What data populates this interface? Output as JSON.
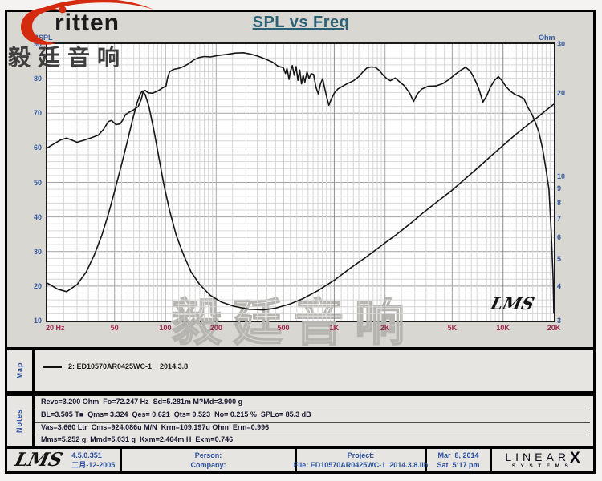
{
  "header": {
    "title": "SPL vs Freq",
    "logo_text": "ritten",
    "watermark": "毅廷音响"
  },
  "chart": {
    "signature": "LMS"
  },
  "chart_data": {
    "type": "line",
    "title": "SPL vs Freq",
    "grid": true,
    "x_axis": {
      "label": "Hz",
      "scale": "log",
      "min": 20,
      "max": 20000,
      "tick_values": [
        20,
        50,
        100,
        200,
        500,
        1000,
        2000,
        5000,
        10000,
        20000
      ],
      "tick_labels": [
        "20 Hz",
        "50",
        "100",
        "200",
        "500",
        "1K",
        "2K",
        "5K",
        "10K",
        "20K"
      ]
    },
    "y_axis_left": {
      "label": "dBSPL",
      "scale": "linear",
      "min": 10,
      "max": 90,
      "ticks": [
        90,
        80,
        70,
        60,
        50,
        40,
        30,
        20,
        10
      ]
    },
    "y_axis_right": {
      "label": "Ohm",
      "scale": "log",
      "min": 3,
      "max": 30,
      "ticks": [
        30,
        20,
        10,
        9,
        8,
        7,
        6,
        5,
        4,
        3
      ]
    },
    "series": [
      {
        "name": "SPL — 2: ED10570AR0425WC-1 2014.3.8",
        "axis": "left",
        "unit": "dBSPL",
        "points": [
          [
            20,
            60
          ],
          [
            22,
            61.2
          ],
          [
            24,
            62.3
          ],
          [
            26,
            62.8
          ],
          [
            28,
            62.2
          ],
          [
            30,
            61.6
          ],
          [
            33,
            62.2
          ],
          [
            36,
            62.8
          ],
          [
            40,
            63.6
          ],
          [
            43,
            65.3
          ],
          [
            46,
            67.6
          ],
          [
            48,
            67.9
          ],
          [
            51,
            66.7
          ],
          [
            54,
            66.9
          ],
          [
            56,
            68.1
          ],
          [
            58,
            69.6
          ],
          [
            61,
            70.3
          ],
          [
            65,
            71
          ],
          [
            69,
            71.9
          ],
          [
            72,
            74
          ],
          [
            74,
            76.4
          ],
          [
            76,
            76.6
          ],
          [
            79,
            75.9
          ],
          [
            84,
            75.8
          ],
          [
            90,
            76.4
          ],
          [
            96,
            77.3
          ],
          [
            101,
            77.9
          ],
          [
            103,
            80.2
          ],
          [
            106,
            82
          ],
          [
            112,
            82.7
          ],
          [
            120,
            83
          ],
          [
            128,
            83.5
          ],
          [
            137,
            84.3
          ],
          [
            147,
            85.4
          ],
          [
            158,
            86.1
          ],
          [
            170,
            86.4
          ],
          [
            185,
            86.3
          ],
          [
            205,
            86.7
          ],
          [
            230,
            87
          ],
          [
            260,
            87.4
          ],
          [
            290,
            87.5
          ],
          [
            320,
            87.1
          ],
          [
            355,
            86.5
          ],
          [
            395,
            85.6
          ],
          [
            430,
            84.8
          ],
          [
            465,
            83.6
          ],
          [
            500,
            83.2
          ],
          [
            515,
            81.5
          ],
          [
            525,
            83
          ],
          [
            540,
            79.8
          ],
          [
            550,
            82
          ],
          [
            565,
            83.8
          ],
          [
            580,
            81
          ],
          [
            595,
            83.5
          ],
          [
            610,
            79.5
          ],
          [
            625,
            82.5
          ],
          [
            640,
            78.5
          ],
          [
            655,
            81
          ],
          [
            670,
            79
          ],
          [
            690,
            82
          ],
          [
            710,
            80
          ],
          [
            730,
            81.5
          ],
          [
            755,
            81.2
          ],
          [
            780,
            77.5
          ],
          [
            805,
            75.6
          ],
          [
            830,
            78.5
          ],
          [
            855,
            80
          ],
          [
            880,
            77
          ],
          [
            905,
            74.5
          ],
          [
            930,
            72.3
          ],
          [
            960,
            74
          ],
          [
            1000,
            75.8
          ],
          [
            1050,
            77
          ],
          [
            1120,
            77.8
          ],
          [
            1200,
            78.6
          ],
          [
            1300,
            79.4
          ],
          [
            1400,
            80.6
          ],
          [
            1480,
            82
          ],
          [
            1560,
            83.1
          ],
          [
            1650,
            83.4
          ],
          [
            1750,
            83.3
          ],
          [
            1850,
            82.4
          ],
          [
            1950,
            81
          ],
          [
            2050,
            80
          ],
          [
            2150,
            79.4
          ],
          [
            2300,
            80.2
          ],
          [
            2450,
            79
          ],
          [
            2600,
            78
          ],
          [
            2800,
            75.8
          ],
          [
            2950,
            73.4
          ],
          [
            3100,
            75.5
          ],
          [
            3300,
            77
          ],
          [
            3600,
            77.8
          ],
          [
            4000,
            77.9
          ],
          [
            4400,
            78.6
          ],
          [
            4800,
            79.8
          ],
          [
            5200,
            81.2
          ],
          [
            5600,
            82.4
          ],
          [
            6000,
            83.3
          ],
          [
            6400,
            82.2
          ],
          [
            6800,
            79.8
          ],
          [
            7200,
            77
          ],
          [
            7600,
            73.2
          ],
          [
            8000,
            75
          ],
          [
            8400,
            77.5
          ],
          [
            8900,
            79.5
          ],
          [
            9400,
            80.6
          ],
          [
            9900,
            79.3
          ],
          [
            10400,
            77.7
          ],
          [
            11000,
            76.5
          ],
          [
            11700,
            75.5
          ],
          [
            12500,
            74.9
          ],
          [
            13300,
            74.2
          ],
          [
            14000,
            71.8
          ],
          [
            14800,
            69.8
          ],
          [
            15500,
            67.5
          ],
          [
            16300,
            64.6
          ],
          [
            17200,
            59.5
          ],
          [
            18000,
            53.5
          ],
          [
            18700,
            48
          ],
          [
            19300,
            36
          ],
          [
            19800,
            22
          ],
          [
            20000,
            12
          ]
        ]
      },
      {
        "name": "Impedance — 2: ED10570AR0425WC-1 2014.3.8",
        "axis": "right",
        "unit": "Ohm",
        "points": [
          [
            20,
            4.1
          ],
          [
            23,
            3.9
          ],
          [
            26,
            3.82
          ],
          [
            30,
            4.05
          ],
          [
            34,
            4.5
          ],
          [
            38,
            5.2
          ],
          [
            42,
            6.1
          ],
          [
            46,
            7.3
          ],
          [
            50,
            8.8
          ],
          [
            55,
            11
          ],
          [
            60,
            13.6
          ],
          [
            64,
            16
          ],
          [
            68,
            18.4
          ],
          [
            71,
            19.8
          ],
          [
            73,
            20.3
          ],
          [
            76,
            19.7
          ],
          [
            80,
            17.8
          ],
          [
            85,
            14.9
          ],
          [
            91,
            11.9
          ],
          [
            98,
            9.3
          ],
          [
            106,
            7.5
          ],
          [
            116,
            6.1
          ],
          [
            128,
            5.2
          ],
          [
            142,
            4.5
          ],
          [
            160,
            4.05
          ],
          [
            185,
            3.7
          ],
          [
            215,
            3.5
          ],
          [
            255,
            3.38
          ],
          [
            310,
            3.3
          ],
          [
            380,
            3.28
          ],
          [
            450,
            3.33
          ],
          [
            550,
            3.45
          ],
          [
            650,
            3.6
          ],
          [
            800,
            3.85
          ],
          [
            1000,
            4.2
          ],
          [
            1250,
            4.65
          ],
          [
            1550,
            5.1
          ],
          [
            1900,
            5.6
          ],
          [
            2300,
            6.1
          ],
          [
            2800,
            6.7
          ],
          [
            3400,
            7.4
          ],
          [
            4100,
            8.1
          ],
          [
            5000,
            8.9
          ],
          [
            6000,
            9.8
          ],
          [
            7200,
            10.8
          ],
          [
            8600,
            11.9
          ],
          [
            10000,
            12.9
          ],
          [
            12000,
            14.2
          ],
          [
            14000,
            15.3
          ],
          [
            16000,
            16.3
          ],
          [
            18000,
            17.3
          ],
          [
            20000,
            18.2
          ]
        ]
      }
    ],
    "legend_position": "map-panel"
  },
  "map_panel": {
    "label": "Map",
    "legend_text": "2: ED10570AR0425WC-1    2014.3.8"
  },
  "notes_panel": {
    "label": "Notes",
    "lines": [
      "Revc=3.200 Ohm  Fo=72.247 Hz  Sd=5.281m M?Md=3.900 g",
      "BL=3.505 T■  Qms= 3.324  Qes= 0.621  Qts= 0.523  No= 0.215 %  SPLo= 85.3 dB",
      "Vas=3.660 Ltr  Cms=924.086u M/N  Krm=109.197u Ohm  Erm=0.996",
      "Mms=5.252 g  Mmd=5.031 g  Kxm=2.464m H  Exm=0.746"
    ]
  },
  "footer": {
    "lms_logo": "LMS",
    "version": "4.5.0.351",
    "version_date": "二月-12-2005",
    "person_label": "Person:",
    "company_label": "Company:",
    "project_label": "Project:",
    "file_label": "File: ED10570AR0425WC-1  2014.3.8.lib",
    "date": "Mar  8, 2014",
    "time": "Sat  5:17 pm",
    "brand_top": "LINEAR",
    "brand_x": "X",
    "brand_bottom": "SYSTEMS"
  },
  "colors": {
    "title": "#2b6175",
    "axis_blue": "#34589e",
    "axis_red": "#a02850",
    "logo_red": "#d42a10",
    "curve": "#161616"
  }
}
